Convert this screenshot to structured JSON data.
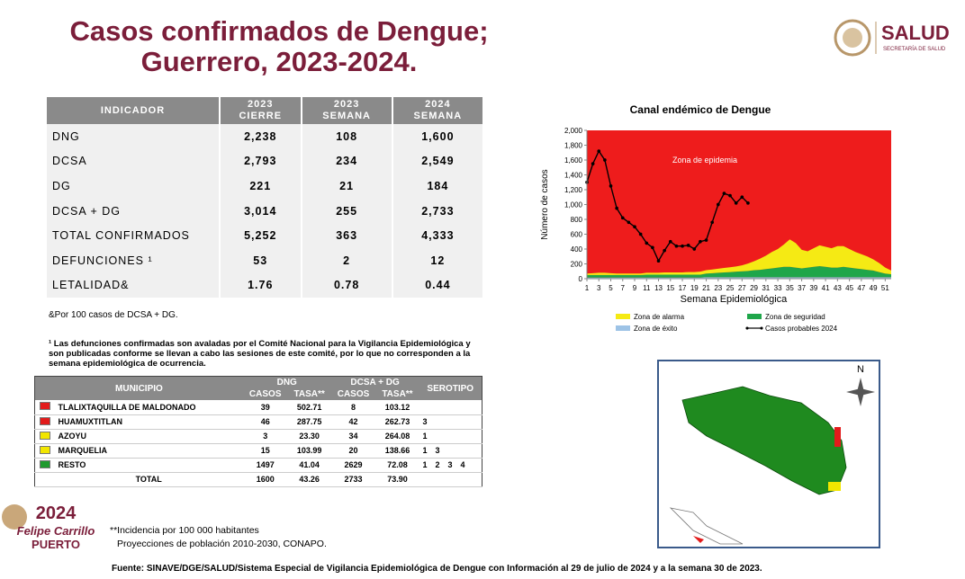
{
  "header": {
    "title_lines": [
      "Casos confirmados de Dengue;",
      "Guerrero, 2023-2024."
    ],
    "logo_name": "SALUD",
    "logo_sub": "SECRETARÍA DE SALUD"
  },
  "indicators": {
    "columns": [
      {
        "top": "INDICADOR"
      },
      {
        "top": "2023",
        "bottom": "CIERRE"
      },
      {
        "top": "2023",
        "bottom": "SEMANA"
      },
      {
        "top": "2024",
        "bottom": "SEMANA"
      }
    ],
    "rows": [
      [
        "DNG",
        "2,238",
        "108",
        "1,600"
      ],
      [
        "DCSA",
        "2,793",
        "234",
        "2,549"
      ],
      [
        "DG",
        "221",
        "21",
        "184"
      ],
      [
        "DCSA + DG",
        "3,014",
        "255",
        "2,733"
      ],
      [
        "TOTAL CONFIRMADOS",
        "5,252",
        "363",
        "4,333"
      ],
      [
        "DEFUNCIONES ¹",
        "53",
        "2",
        "12"
      ],
      [
        "LETALIDAD&",
        "1.76",
        "0.78",
        "0.44"
      ]
    ],
    "note": "&Por 100 casos de DCSA + DG.",
    "footnote": "¹ Las defunciones confirmadas son avaladas por el Comité Nacional para la Vigilancia Epidemiológica y son publicadas conforme se llevan a cabo las sesiones de este comité, por lo que no corresponden a la semana epidemiológica de ocurrencia."
  },
  "municipios": {
    "head": {
      "municipio": "MUNICIPIO",
      "dng": "DNG",
      "dcsa": "DCSA + DG",
      "serotipo": "SEROTIPO",
      "casos": "CASOS",
      "tasa": "TASA**"
    },
    "rows": [
      {
        "color": "#e21b1b",
        "name": "TLALIXTAQUILLA DE MALDONADO",
        "dng_casos": "39",
        "dng_tasa": "502.71",
        "dcsa_casos": "8",
        "dcsa_tasa": "103.12",
        "serotipo": []
      },
      {
        "color": "#e21b1b",
        "name": "HUAMUXTITLAN",
        "dng_casos": "46",
        "dng_tasa": "287.75",
        "dcsa_casos": "42",
        "dcsa_tasa": "262.73",
        "serotipo": [
          "3"
        ]
      },
      {
        "color": "#f2e600",
        "name": "AZOYU",
        "dng_casos": "3",
        "dng_tasa": "23.30",
        "dcsa_casos": "34",
        "dcsa_tasa": "264.08",
        "serotipo": [
          "1"
        ]
      },
      {
        "color": "#f2e600",
        "name": "MARQUELIA",
        "dng_casos": "15",
        "dng_tasa": "103.99",
        "dcsa_casos": "20",
        "dcsa_tasa": "138.66",
        "serotipo": [
          "1",
          "3"
        ]
      },
      {
        "color": "#1f9a2e",
        "name": "RESTO",
        "dng_casos": "1497",
        "dng_tasa": "41.04",
        "dcsa_casos": "2629",
        "dcsa_tasa": "72.08",
        "serotipo": [
          "1",
          "2",
          "3",
          "4"
        ]
      },
      {
        "name": "TOTAL",
        "dng_casos": "1600",
        "dng_tasa": "43.26",
        "dcsa_casos": "2733",
        "dcsa_tasa": "73.90",
        "serotipo": []
      }
    ],
    "note1": "**Incidencia por 100 000 habitantes",
    "note2": "Proyecciones de población 2010-2030,  CONAPO."
  },
  "chart_data": {
    "type": "area",
    "title": "Canal endémico de Dengue",
    "x_label": "Semana Epidemiológica",
    "y_label": "Número de casos",
    "annotation": "Zona de epidemia",
    "epidemic_color": "#ee1c1c",
    "x": [
      1,
      2,
      3,
      4,
      5,
      6,
      7,
      8,
      9,
      10,
      11,
      12,
      13,
      14,
      15,
      16,
      17,
      18,
      19,
      20,
      21,
      22,
      23,
      24,
      25,
      26,
      27,
      28,
      29,
      30,
      31,
      32,
      33,
      34,
      35,
      36,
      37,
      38,
      39,
      40,
      41,
      42,
      43,
      44,
      45,
      46,
      47,
      48,
      49,
      50,
      51,
      52
    ],
    "xlim": [
      1,
      52
    ],
    "xticks": [
      1,
      3,
      5,
      7,
      9,
      11,
      13,
      15,
      17,
      19,
      21,
      23,
      25,
      27,
      29,
      31,
      33,
      35,
      37,
      39,
      41,
      43,
      45,
      47,
      49,
      51
    ],
    "ylim": [
      0,
      2000
    ],
    "yticks": [
      0,
      200,
      400,
      600,
      800,
      {
        "value": 1000,
        "label": "1,000"
      },
      {
        "value": 1200,
        "label": "1,200"
      },
      {
        "value": 1400,
        "label": "1,400"
      },
      {
        "value": 1600,
        "label": "1,600"
      },
      {
        "value": 1800,
        "label": "1,800"
      },
      {
        "value": 2000,
        "label": "2,000"
      }
    ],
    "series": [
      {
        "name": "Zona de éxito",
        "color": "#9dc3e6",
        "values": [
          15,
          15,
          15,
          15,
          15,
          15,
          15,
          15,
          15,
          15,
          15,
          15,
          15,
          15,
          15,
          15,
          15,
          15,
          15,
          15,
          20,
          20,
          20,
          20,
          20,
          20,
          20,
          20,
          20,
          20,
          20,
          20,
          20,
          20,
          20,
          20,
          20,
          20,
          20,
          20,
          20,
          20,
          20,
          20,
          20,
          20,
          20,
          20,
          20,
          20,
          20,
          20
        ]
      },
      {
        "name": "Zona de seguridad",
        "color": "#1fa64a",
        "values": [
          35,
          35,
          35,
          35,
          35,
          35,
          35,
          35,
          35,
          35,
          40,
          40,
          40,
          40,
          40,
          40,
          40,
          40,
          40,
          40,
          50,
          55,
          60,
          65,
          70,
          75,
          80,
          85,
          95,
          100,
          110,
          120,
          130,
          140,
          140,
          130,
          120,
          130,
          140,
          150,
          140,
          130,
          130,
          140,
          130,
          120,
          110,
          100,
          90,
          70,
          50,
          40
        ]
      },
      {
        "name": "Zona de alarma",
        "color": "#f5ea14",
        "values": [
          20,
          25,
          30,
          30,
          25,
          20,
          20,
          20,
          20,
          20,
          25,
          25,
          25,
          30,
          30,
          30,
          30,
          35,
          35,
          40,
          45,
          50,
          55,
          60,
          65,
          70,
          80,
          100,
          120,
          150,
          180,
          220,
          250,
          300,
          370,
          330,
          250,
          220,
          250,
          280,
          270,
          260,
          290,
          280,
          250,
          220,
          200,
          180,
          150,
          120,
          80,
          50
        ]
      },
      {
        "name": "Casos probables 2024",
        "color": "#000000",
        "kind": "line",
        "values": [
          1300,
          1550,
          1720,
          1600,
          1250,
          950,
          820,
          760,
          700,
          600,
          480,
          420,
          240,
          380,
          500,
          440,
          440,
          450,
          400,
          500,
          520,
          760,
          1000,
          1150,
          1120,
          1020,
          1100,
          1020,
          null,
          null,
          null,
          null,
          null,
          null,
          null,
          null,
          null,
          null,
          null,
          null,
          null,
          null,
          null,
          null,
          null,
          null,
          null,
          null,
          null,
          null,
          null,
          null
        ]
      }
    ]
  },
  "map": {
    "north": "N"
  },
  "sidebar": {
    "year": "2024",
    "name": "Felipe Carrillo",
    "surname": "PUERTO"
  },
  "footer": "Fuente: SINAVE/DGE/SALUD/Sistema Especial de Vigilancia Epidemiológica de Dengue con Información al 29 de julio de 2024 y a la semana 30 de 2023."
}
